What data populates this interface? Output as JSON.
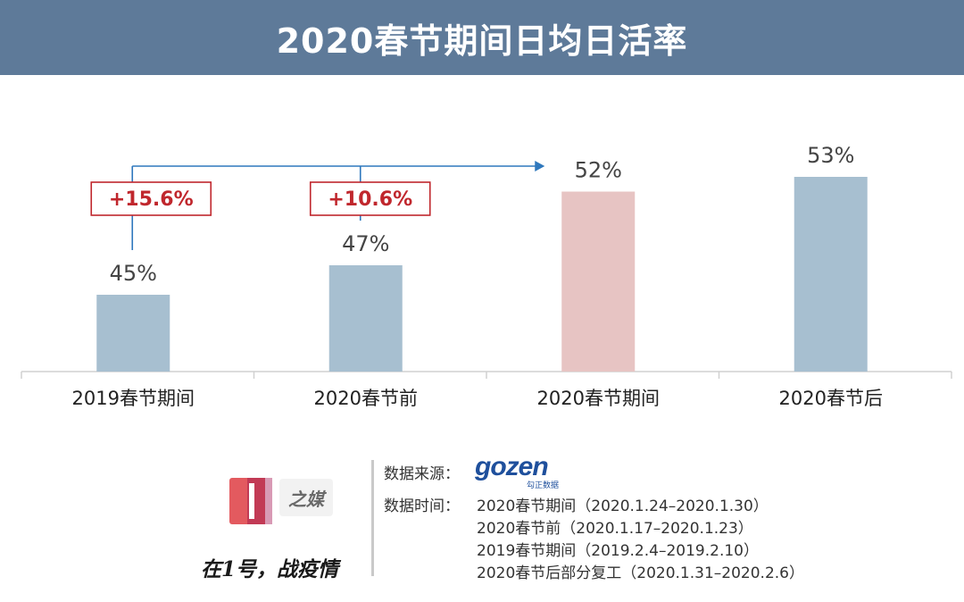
{
  "title": "2020春节期间日均日活率",
  "chart_data": {
    "type": "bar",
    "categories": [
      "2019春节期间",
      "2020春节前",
      "2020春节期间",
      "2020春节后"
    ],
    "values": [
      45,
      47,
      52,
      53
    ],
    "value_labels": [
      "45%",
      "47%",
      "52%",
      "53%"
    ],
    "ylim": [
      0,
      60
    ],
    "colors": [
      "#a7bfd0",
      "#a7bfd0",
      "#e7c4c3",
      "#a7bfd0"
    ],
    "accent_color": "#2f78bd",
    "annotation_color": "#c0272d",
    "annotations": [
      {
        "label": "+15.6%",
        "from_category": 0,
        "to_category": 2
      },
      {
        "label": "+10.6%",
        "from_category": 1,
        "to_category": 2
      }
    ],
    "grid": false
  },
  "footer": {
    "source_label": "数据来源：",
    "source_brand": "gozen",
    "source_brand_sub": "勾正数据",
    "time_label": "数据时间：",
    "time_lines": [
      "2020春节期间（2020.1.24–2020.1.30）",
      "2020春节前（2020.1.17–2020.1.23）",
      "2019春节期间（2019.2.4–2019.2.10）",
      "2020春节后部分复工（2020.1.31–2020.2.6）"
    ],
    "logo_text": "之媒",
    "slogan": "在1号，战疫情"
  }
}
